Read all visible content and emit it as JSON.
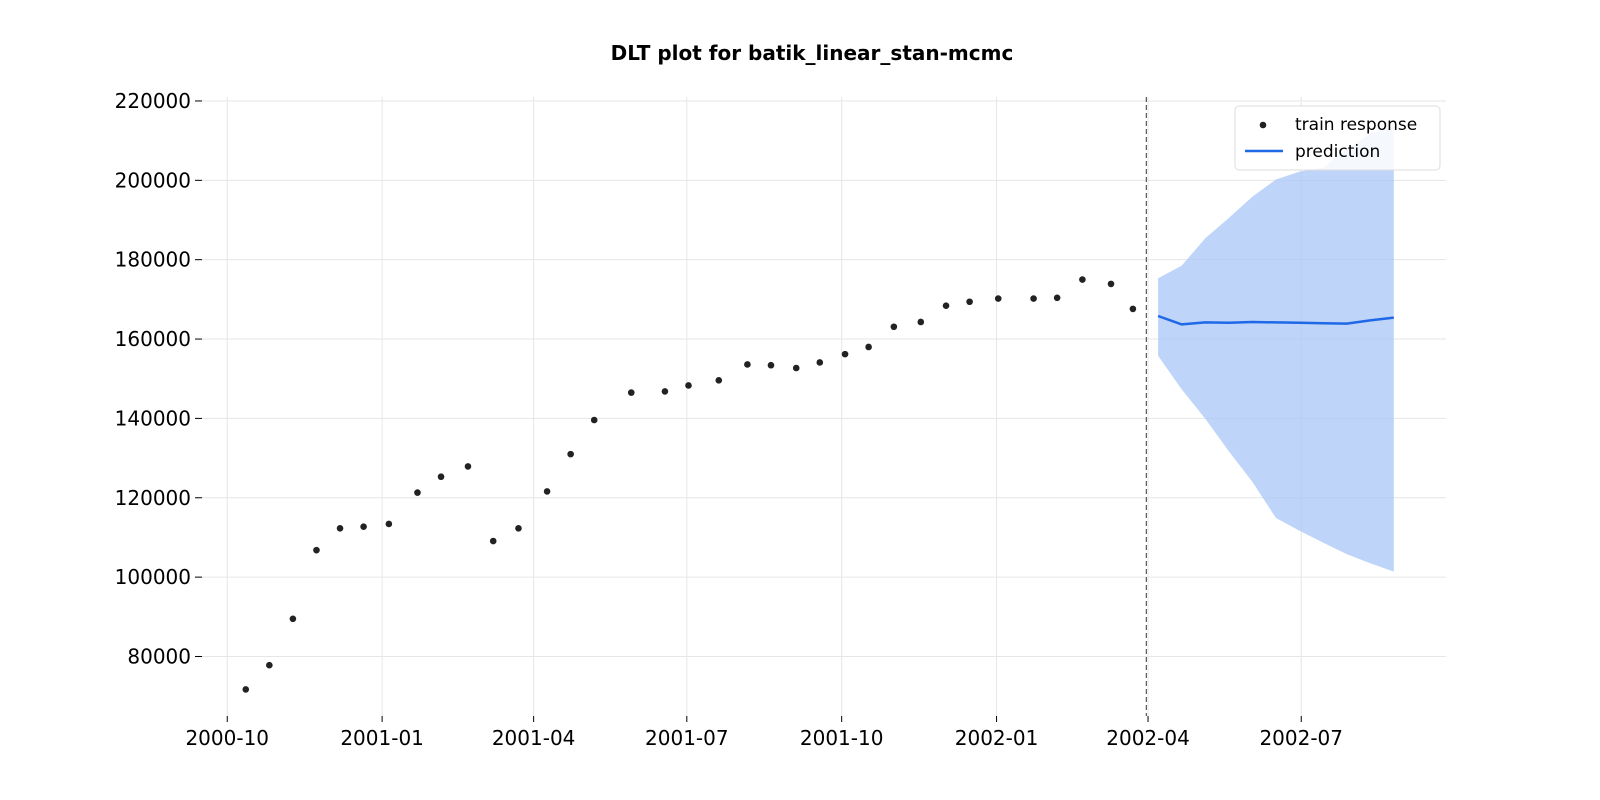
{
  "chart_data": {
    "type": "line",
    "title": "DLT plot for batik_linear_stan-mcmc",
    "xlabel": "",
    "ylabel": "",
    "x_axis": {
      "type": "date",
      "range": [
        "2000-09-16",
        "2002-09-25"
      ],
      "ticks": [
        "2000-10-01",
        "2001-01-01",
        "2001-04-01",
        "2001-07-01",
        "2001-10-01",
        "2002-01-01",
        "2002-04-01",
        "2002-07-01"
      ],
      "tick_labels": [
        "2000-10",
        "2001-01",
        "2001-04",
        "2001-07",
        "2001-10",
        "2002-01",
        "2002-04",
        "2002-07"
      ]
    },
    "y_axis": {
      "range": [
        65000,
        221000
      ],
      "ticks": [
        80000,
        100000,
        120000,
        140000,
        160000,
        180000,
        200000,
        220000
      ],
      "tick_labels": [
        "80000",
        "100000",
        "120000",
        "140000",
        "160000",
        "180000",
        "200000",
        "220000"
      ]
    },
    "grid": true,
    "legend": {
      "position": "top-right",
      "entries": [
        "train response",
        "prediction"
      ]
    },
    "split_date": "2002-03-31",
    "series": [
      {
        "name": "train response",
        "type": "scatter",
        "color": "#222222",
        "points": [
          [
            "2000-10-12",
            71700
          ],
          [
            "2000-10-26",
            77800
          ],
          [
            "2000-11-09",
            89500
          ],
          [
            "2000-11-23",
            106800
          ],
          [
            "2000-12-07",
            112300
          ],
          [
            "2000-12-21",
            112700
          ],
          [
            "2001-01-05",
            113400
          ],
          [
            "2001-01-22",
            121300
          ],
          [
            "2001-02-05",
            125300
          ],
          [
            "2001-02-21",
            127900
          ],
          [
            "2001-03-08",
            109100
          ],
          [
            "2001-03-23",
            112300
          ],
          [
            "2001-04-09",
            121600
          ],
          [
            "2001-04-23",
            131000
          ],
          [
            "2001-05-07",
            139600
          ],
          [
            "2001-05-29",
            146500
          ],
          [
            "2001-06-18",
            146800
          ],
          [
            "2001-07-02",
            148300
          ],
          [
            "2001-07-20",
            149600
          ],
          [
            "2001-08-06",
            153600
          ],
          [
            "2001-08-20",
            153400
          ],
          [
            "2001-09-04",
            152700
          ],
          [
            "2001-09-18",
            154100
          ],
          [
            "2001-10-03",
            156200
          ],
          [
            "2001-10-17",
            158000
          ],
          [
            "2001-11-01",
            163100
          ],
          [
            "2001-11-17",
            164300
          ],
          [
            "2001-12-02",
            168400
          ],
          [
            "2001-12-16",
            169400
          ],
          [
            "2002-01-02",
            170200
          ],
          [
            "2002-01-23",
            170200
          ],
          [
            "2002-02-06",
            170400
          ],
          [
            "2002-02-21",
            175000
          ],
          [
            "2002-03-10",
            173900
          ],
          [
            "2002-03-23",
            167600
          ]
        ]
      },
      {
        "name": "prediction",
        "type": "line",
        "color": "#1f68e8",
        "points": [
          [
            "2002-04-07",
            165800
          ],
          [
            "2002-04-21",
            163700
          ],
          [
            "2002-05-05",
            164200
          ],
          [
            "2002-05-19",
            164100
          ],
          [
            "2002-06-02",
            164300
          ],
          [
            "2002-06-16",
            164200
          ],
          [
            "2002-06-30",
            164100
          ],
          [
            "2002-07-14",
            164000
          ],
          [
            "2002-07-28",
            163900
          ],
          [
            "2002-08-11",
            164700
          ],
          [
            "2002-08-25",
            165400
          ]
        ]
      }
    ],
    "prediction_interval": {
      "color": "#a8c5f5",
      "points": [
        [
          "2002-04-07",
          155800,
          175300
        ],
        [
          "2002-04-21",
          147300,
          178500
        ],
        [
          "2002-05-05",
          139900,
          185400
        ],
        [
          "2002-05-19",
          131700,
          190500
        ],
        [
          "2002-06-02",
          124000,
          195900
        ],
        [
          "2002-06-16",
          114900,
          200200
        ],
        [
          "2002-06-30",
          111700,
          202200
        ],
        [
          "2002-07-14",
          108700,
          203200
        ],
        [
          "2002-07-28",
          105800,
          207900
        ],
        [
          "2002-08-11",
          103500,
          211700
        ],
        [
          "2002-08-25",
          101400,
          213700
        ]
      ]
    }
  }
}
